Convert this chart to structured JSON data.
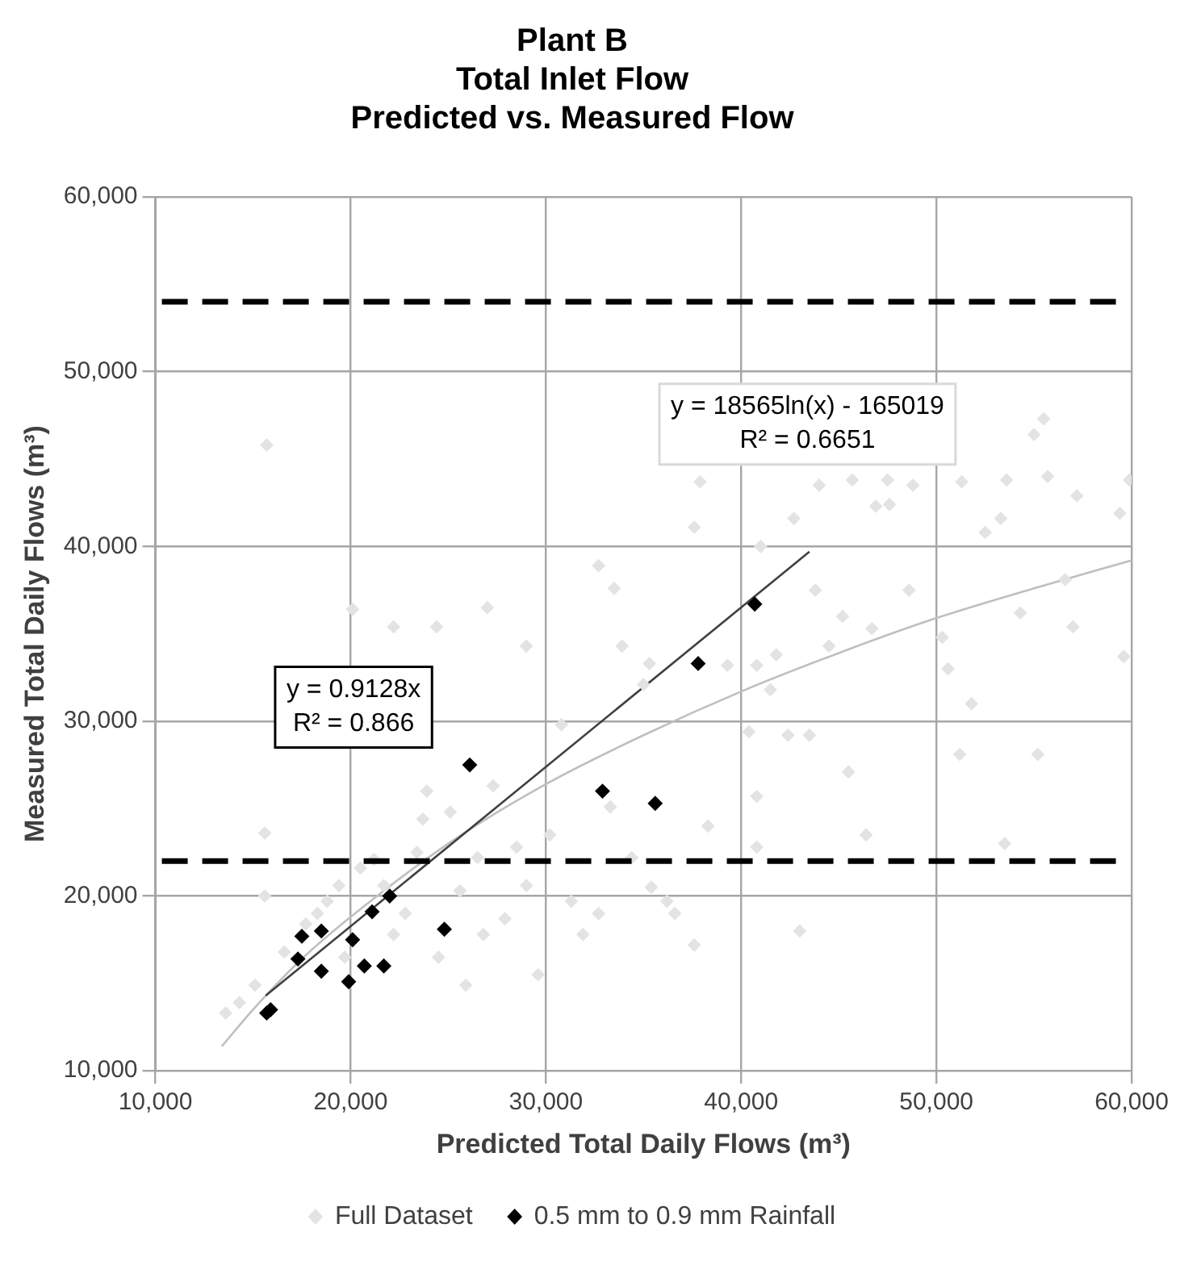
{
  "chart_data": {
    "type": "scatter",
    "title": "Plant B\nTotal Inlet Flow\nPredicted vs. Measured Flow",
    "xlabel": "Predicted Total Daily Flows (m³)",
    "ylabel": "Measured Total Daily Flows (m³)",
    "xlim": [
      10000,
      60000
    ],
    "ylim": [
      10000,
      60000
    ],
    "xticks": [
      {
        "value": 10000,
        "label": "10,000"
      },
      {
        "value": 20000,
        "label": "20,000"
      },
      {
        "value": 30000,
        "label": "30,000"
      },
      {
        "value": 40000,
        "label": "40,000"
      },
      {
        "value": 50000,
        "label": "50,000"
      },
      {
        "value": 60000,
        "label": "60,000"
      }
    ],
    "yticks": [
      {
        "value": 10000,
        "label": "10,000"
      },
      {
        "value": 20000,
        "label": "20,000"
      },
      {
        "value": 30000,
        "label": "30,000"
      },
      {
        "value": 40000,
        "label": "40,000"
      },
      {
        "value": 50000,
        "label": "50,000"
      },
      {
        "value": 60000,
        "label": "60,000"
      }
    ],
    "grid": true,
    "legend": "bottom",
    "marker": "diamond",
    "series": [
      {
        "name": "Full Dataset",
        "color": "#e3e3e3",
        "x": [
          13600,
          14300,
          15100,
          15600,
          16600,
          17700,
          18300,
          18800,
          19400,
          19700,
          20500,
          21200,
          21700,
          22200,
          22800,
          23400,
          23700,
          23900,
          24500,
          25100,
          25600,
          25900,
          26500,
          26800,
          27300,
          27900,
          28500,
          29000,
          29600,
          30200,
          30800,
          31300,
          31900,
          32700,
          33300,
          33900,
          34400,
          35000,
          15600,
          24400,
          29000,
          35300,
          39300,
          40800,
          41800,
          41500,
          40400,
          42400,
          43500,
          45500,
          40800,
          46400,
          40800,
          35400,
          36200,
          36600,
          37600,
          43000,
          44500,
          46700,
          50300,
          50600,
          51800,
          51200,
          55200,
          53500,
          57000,
          59600,
          38300,
          37900,
          41000,
          42700,
          44000,
          45700,
          47500,
          46900,
          47600,
          48800,
          55500,
          55000,
          51300,
          53600,
          55700,
          57200,
          59400,
          52500,
          53300,
          56600,
          54300,
          59900,
          37600,
          43800,
          48600,
          45200,
          15700,
          32700,
          33500,
          20100,
          22200,
          27000
        ],
        "values": [
          13300,
          13900,
          14900,
          23600,
          16800,
          18400,
          19000,
          19700,
          20600,
          16500,
          21600,
          22100,
          20600,
          17800,
          19000,
          22500,
          24400,
          26000,
          16500,
          24800,
          20300,
          14900,
          22200,
          17800,
          26300,
          18700,
          22800,
          20600,
          15500,
          23500,
          29800,
          19700,
          17800,
          19000,
          25100,
          34300,
          22200,
          32100,
          20000,
          35400,
          34300,
          33300,
          33200,
          33200,
          33800,
          31800,
          29400,
          29200,
          29200,
          27100,
          25700,
          23500,
          22800,
          20500,
          19700,
          19000,
          17200,
          18000,
          34300,
          35300,
          34800,
          33000,
          31000,
          28100,
          28100,
          23000,
          35400,
          33700,
          24000,
          43700,
          40000,
          41600,
          43500,
          43800,
          43800,
          42300,
          42400,
          43500,
          47300,
          46400,
          43700,
          43800,
          44000,
          42900,
          41900,
          40800,
          41600,
          38100,
          36200,
          43800,
          41100,
          37500,
          37500,
          36000,
          45800,
          38900,
          37600,
          36400,
          35400,
          36500
        ]
      },
      {
        "name": "0.5 mm to 0.9 mm Rainfall",
        "color": "#000000",
        "x": [
          15700,
          15900,
          17300,
          17500,
          18500,
          18500,
          19900,
          20100,
          20700,
          21100,
          21700,
          22000,
          24800,
          26100,
          32900,
          35600,
          37800,
          40700
        ],
        "values": [
          13300,
          13500,
          16400,
          17700,
          18000,
          15700,
          15100,
          17500,
          16000,
          19100,
          16000,
          20000,
          18100,
          27500,
          26000,
          25300,
          33300,
          36700
        ]
      },
      {
        "type": "line",
        "marker": "none",
        "color": "#404040",
        "x": [
          15650,
          43500
        ],
        "values": [
          14300,
          39700
        ]
      },
      {
        "type": "line",
        "marker": "none",
        "color": "#bfbfbf",
        "x": [
          13400,
          15000,
          17500,
          20000,
          25000,
          30000,
          35000,
          40000,
          45000,
          50000,
          55000,
          60000
        ],
        "values": [
          11400,
          13500,
          16400,
          18800,
          23000,
          26400,
          29200,
          31700,
          33900,
          35900,
          37600,
          39200
        ]
      }
    ],
    "ref_lines": [
      {
        "axis": "y",
        "value": 54000,
        "color": "#000000",
        "line_style": "dashed"
      },
      {
        "axis": "y",
        "value": 22000,
        "color": "#000000",
        "line_style": "dashed"
      }
    ],
    "annotations": [
      "y = 18565ln(x) - 165019\nR² = 0.6651",
      "y = 0.9128x\nR² = 0.866"
    ]
  }
}
